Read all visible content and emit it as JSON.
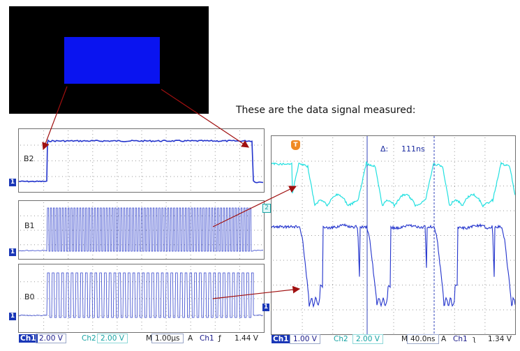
{
  "caption": "These are the data signal measured:",
  "left_scope": {
    "panels": [
      {
        "label": "B2",
        "marker": "1"
      },
      {
        "label": "B1",
        "marker": "1"
      },
      {
        "label": "B0",
        "marker": "1"
      }
    ],
    "status": {
      "ch1_tag": "Ch1",
      "ch1_value": "2.00 V",
      "ch2_tag": "Ch2",
      "ch2_value": "2.00 V",
      "m_tag": "M",
      "m_value": "1.00µs",
      "a_tag": "A",
      "trig_ch": "Ch1",
      "trig_slope": "ƒ",
      "trig_value": "1.44 V"
    }
  },
  "right_scope": {
    "trigger_marker": "T",
    "delta_label": "Δ:",
    "delta_value": "111ns",
    "ch2_marker": "2",
    "ch1_marker": "1",
    "status": {
      "ch1_tag": "Ch1",
      "ch1_value": "1.00 V",
      "ch2_tag": "Ch2",
      "ch2_value": "2.00 V",
      "m_tag": "M",
      "m_value": "40.0ns",
      "a_tag": "A",
      "trig_ch": "Ch1",
      "trig_slope": "ʅ",
      "trig_value": "1.34 V"
    }
  },
  "colors": {
    "trace_blue": "#2233cc",
    "trace_cyan": "#22e0e0",
    "arrow_red": "#a01010",
    "grid": "#9a9a9a"
  }
}
